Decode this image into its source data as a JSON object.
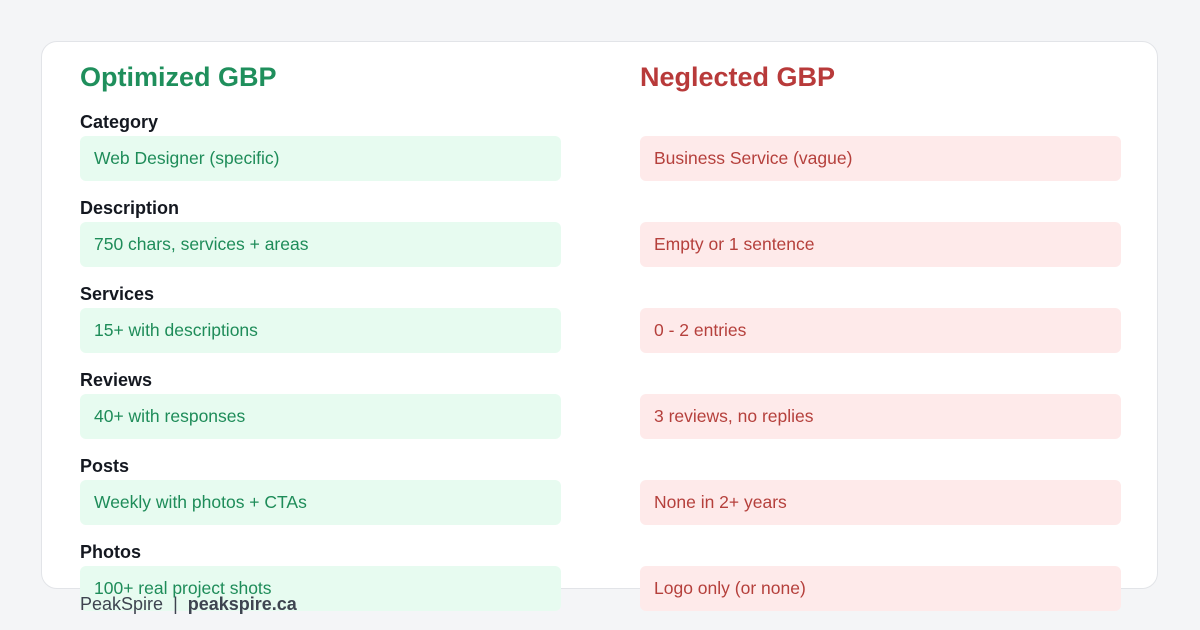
{
  "optimized": {
    "title": "Optimized GBP"
  },
  "neglected": {
    "title": "Neglected GBP"
  },
  "rows": [
    {
      "label": "Category",
      "good": "Web Designer (specific)",
      "bad": "Business Service (vague)"
    },
    {
      "label": "Description",
      "good": "750 chars, services + areas",
      "bad": "Empty or 1 sentence"
    },
    {
      "label": "Services",
      "good": "15+ with descriptions",
      "bad": "0 - 2 entries"
    },
    {
      "label": "Reviews",
      "good": "40+ with responses",
      "bad": "3 reviews, no replies"
    },
    {
      "label": "Posts",
      "good": "Weekly with photos + CTAs",
      "bad": "None in 2+ years"
    },
    {
      "label": "Photos",
      "good": "100+ real project shots",
      "bad": "Logo only (or none)"
    }
  ],
  "footer": {
    "brand": "PeakSpire",
    "separator": "|",
    "url": "peakspire.ca"
  },
  "colors": {
    "good_text": "#1f8f5c",
    "good_bg": "#e7fbf0",
    "bad_text": "#b83a3a",
    "bad_bg": "#feeaea"
  }
}
